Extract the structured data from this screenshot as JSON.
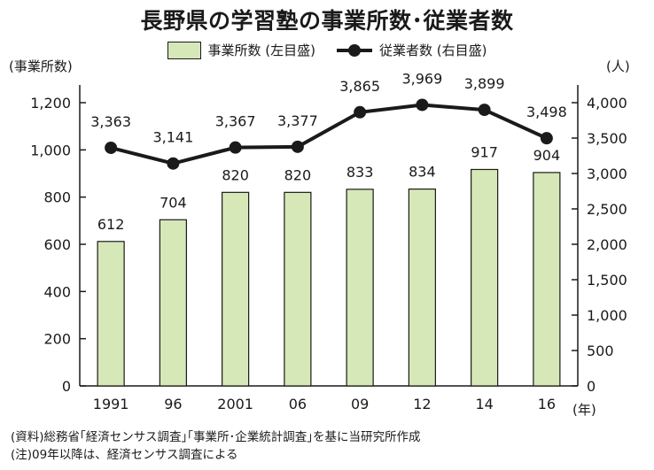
{
  "chart_data": {
    "type": "bar+line",
    "title": "長野県の学習塾の事業所数･従業者数",
    "categories": [
      "1991",
      "96",
      "2001",
      "06",
      "09",
      "12",
      "14",
      "16"
    ],
    "xlabel": "(年)",
    "series": [
      {
        "name": "事業所数 (左目盛)",
        "type": "bar",
        "axis": "left",
        "color": "#d6e8b7",
        "values": [
          612,
          704,
          820,
          820,
          833,
          834,
          917,
          904
        ]
      },
      {
        "name": "従業者数 (右目盛)",
        "type": "line",
        "axis": "right",
        "color": "#1a1a1a",
        "values": [
          3363,
          3141,
          3367,
          3377,
          3865,
          3969,
          3899,
          3498
        ]
      }
    ],
    "y_left": {
      "label": "(事業所数)",
      "ylim": [
        0,
        1200
      ],
      "ticks": [
        0,
        200,
        400,
        600,
        800,
        1000,
        1200
      ],
      "tick_labels": [
        "0",
        "200",
        "400",
        "600",
        "800",
        "1,000",
        "1,200"
      ]
    },
    "y_right": {
      "label": "(人)",
      "ylim": [
        0,
        4000
      ],
      "ticks": [
        0,
        500,
        1000,
        1500,
        2000,
        2500,
        3000,
        3500,
        4000
      ],
      "tick_labels": [
        "0",
        "500",
        "1,000",
        "1,500",
        "2,000",
        "2,500",
        "3,000",
        "3,500",
        "4,000"
      ]
    },
    "grid": false,
    "legend": "top-center"
  },
  "notes": [
    "(資料)総務省｢経済センサス調査｣｢事業所･企業統計調査｣を基に当研究所作成",
    "(注)09年以降は、経済センサス調査による"
  ]
}
